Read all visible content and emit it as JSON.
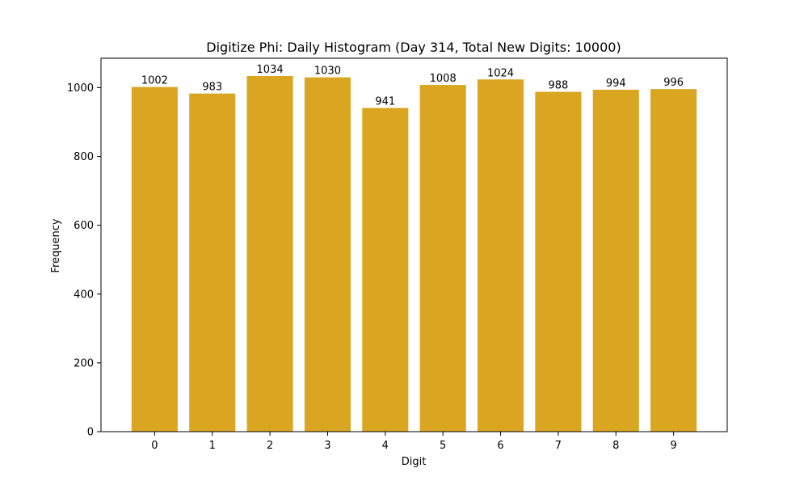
{
  "chart_data": {
    "type": "bar",
    "title": "Digitize Phi: Daily Histogram (Day 314, Total New Digits: 10000)",
    "xlabel": "Digit",
    "ylabel": "Frequency",
    "categories": [
      "0",
      "1",
      "2",
      "3",
      "4",
      "5",
      "6",
      "7",
      "8",
      "9"
    ],
    "values": [
      1002,
      983,
      1034,
      1030,
      941,
      1008,
      1024,
      988,
      994,
      996
    ],
    "data_labels": [
      "1002",
      "983",
      "1034",
      "1030",
      "941",
      "1008",
      "1024",
      "988",
      "994",
      "996"
    ],
    "ylim": [
      0,
      1085.7
    ],
    "yticks": [
      0,
      200,
      400,
      600,
      800,
      1000
    ],
    "ytick_labels": [
      "0",
      "200",
      "400",
      "600",
      "800",
      "1000"
    ],
    "grid": false,
    "bar_color": "#daa520"
  }
}
